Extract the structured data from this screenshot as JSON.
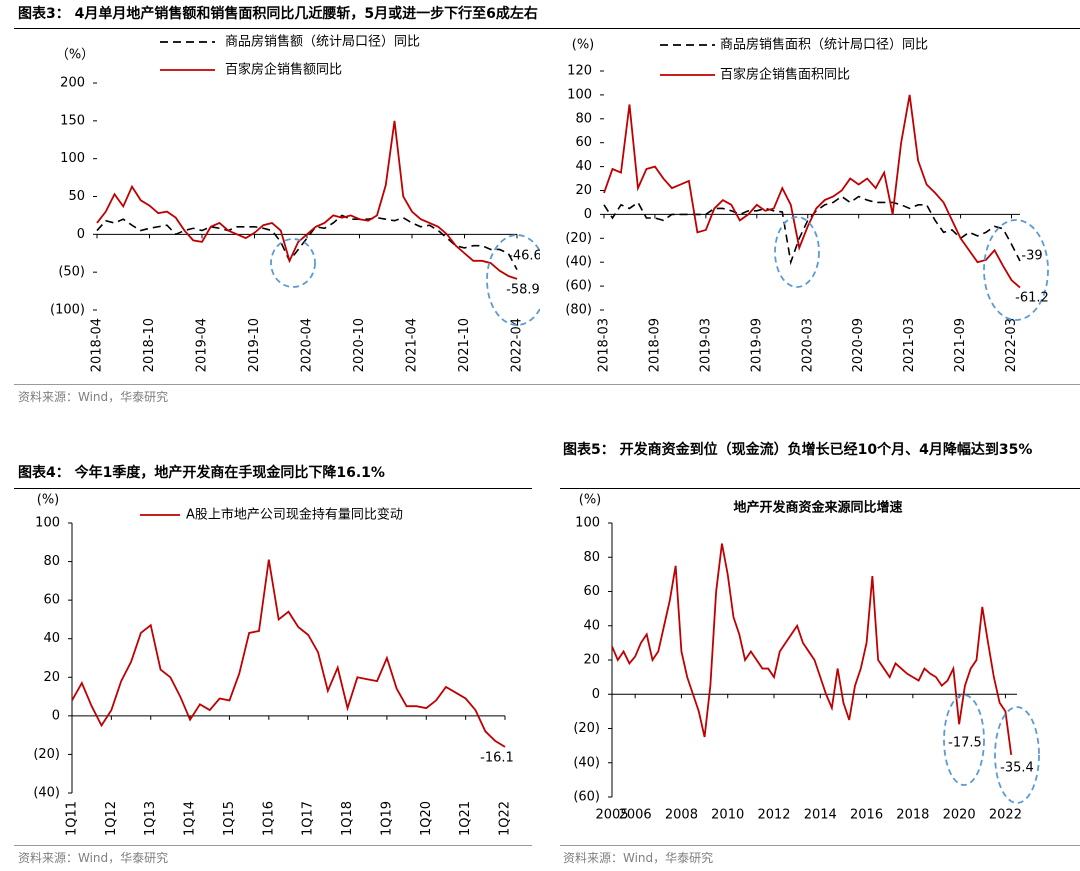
{
  "captions": [
    "图表3：  4月单月地产销售额和销售面积同比几近腰斩，5月或进一步下行至6成左右",
    "图表4：  今年1季度，地产开发商在手现金同比下降16.1%",
    "图表5：  开发商资金到位（现金流）负增长已经10个月、4月降幅达到35%"
  ],
  "sources": [
    "资料来源：Wind，华泰研究",
    "资料来源：Wind，华泰研究",
    "资料来源：Wind，华泰研究"
  ],
  "chart_data": [
    {
      "type": "line",
      "ylabel": "（%）",
      "categories": [
        "2018-04",
        null,
        null,
        null,
        null,
        null,
        "2018-10",
        null,
        null,
        null,
        null,
        null,
        "2019-04",
        null,
        null,
        null,
        null,
        null,
        "2019-10",
        null,
        null,
        null,
        null,
        null,
        "2020-04",
        null,
        null,
        null,
        null,
        null,
        "2020-10",
        null,
        null,
        null,
        null,
        null,
        "2021-04",
        null,
        null,
        null,
        null,
        null,
        "2021-10",
        null,
        null,
        null,
        null,
        null,
        "2022-04"
      ],
      "series": [
        {
          "name": "商品房销售额（统计局口径）同比",
          "color": "#000000",
          "dash": true,
          "values": [
            5,
            18,
            15,
            20,
            12,
            5,
            8,
            10,
            12,
            0,
            5,
            8,
            5,
            10,
            8,
            5,
            10,
            10,
            10,
            8,
            5,
            -10,
            -35,
            -20,
            -5,
            10,
            8,
            15,
            25,
            20,
            20,
            20,
            22,
            20,
            18,
            22,
            15,
            10,
            12,
            5,
            -5,
            -15,
            -18,
            -15,
            -15,
            -20,
            -20,
            -25,
            -46.6
          ]
        },
        {
          "name": "百家房企销售额同比",
          "color": "#c00000",
          "dash": false,
          "values": [
            15,
            30,
            53,
            37,
            63,
            45,
            38,
            28,
            30,
            22,
            5,
            -8,
            -10,
            10,
            15,
            5,
            0,
            -5,
            2,
            12,
            15,
            5,
            -35,
            -10,
            0,
            10,
            15,
            25,
            22,
            25,
            20,
            18,
            25,
            65,
            150,
            50,
            30,
            20,
            15,
            10,
            0,
            -15,
            -25,
            -35,
            -35,
            -38,
            -48,
            -55,
            -58.9
          ]
        }
      ],
      "ylim": [
        -100,
        200
      ],
      "yticks": [
        {
          "value": -100,
          "label": "(100)"
        },
        {
          "value": -50,
          "label": "(50)"
        },
        0,
        50,
        100,
        150,
        200
      ]
    },
    {
      "type": "line",
      "ylabel": "(%)",
      "categories": [
        "2018-03",
        null,
        null,
        null,
        null,
        null,
        "2018-09",
        null,
        null,
        null,
        null,
        null,
        "2019-03",
        null,
        null,
        null,
        null,
        null,
        "2019-09",
        null,
        null,
        null,
        null,
        null,
        "2020-03",
        null,
        null,
        null,
        null,
        null,
        "2020-09",
        null,
        null,
        null,
        null,
        null,
        "2021-03",
        null,
        null,
        null,
        null,
        null,
        "2021-09",
        null,
        null,
        null,
        null,
        null,
        "2022-03",
        null
      ],
      "series": [
        {
          "name": "商品房销售面积（统计局口径）同比",
          "color": "#000000",
          "dash": true,
          "values": [
            8,
            -3,
            8,
            5,
            10,
            -3,
            -3,
            -5,
            0,
            0,
            0,
            0,
            0,
            5,
            5,
            3,
            0,
            3,
            3,
            5,
            3,
            2,
            -40,
            -20,
            -5,
            3,
            8,
            10,
            15,
            10,
            15,
            12,
            10,
            10,
            10,
            8,
            5,
            8,
            8,
            -5,
            -15,
            -13,
            -20,
            -15,
            -18,
            -15,
            -10,
            -12,
            -25,
            -39
          ]
        },
        {
          "name": "百家房企销售面积同比",
          "color": "#c00000",
          "dash": false,
          "values": [
            18,
            38,
            35,
            92,
            22,
            38,
            40,
            30,
            22,
            25,
            28,
            -15,
            -13,
            5,
            12,
            8,
            -5,
            0,
            8,
            3,
            5,
            22,
            8,
            -28,
            -10,
            5,
            12,
            15,
            20,
            30,
            25,
            30,
            22,
            35,
            0,
            60,
            100,
            45,
            25,
            18,
            10,
            -5,
            -20,
            -30,
            -40,
            -38,
            -30,
            -43,
            -55,
            -61.2
          ]
        }
      ],
      "ylim": [
        -80,
        120
      ],
      "yticks": [
        {
          "value": -80,
          "label": "(80)"
        },
        {
          "value": -60,
          "label": "(60)"
        },
        {
          "value": -40,
          "label": "(40)"
        },
        {
          "value": -20,
          "label": "(20)"
        },
        0,
        20,
        40,
        60,
        80,
        100,
        120
      ]
    },
    {
      "type": "line",
      "ylabel": "(%)",
      "categories": [
        "1Q11",
        null,
        null,
        null,
        "1Q12",
        null,
        null,
        null,
        "1Q13",
        null,
        null,
        null,
        "1Q14",
        null,
        null,
        null,
        "1Q15",
        null,
        null,
        null,
        "1Q16",
        null,
        null,
        null,
        "1Q17",
        null,
        null,
        null,
        "1Q18",
        null,
        null,
        null,
        "1Q19",
        null,
        null,
        null,
        "1Q20",
        null,
        null,
        null,
        "1Q21",
        null,
        null,
        null,
        "1Q22"
      ],
      "series": [
        {
          "name": "A股上市地产公司现金持有量同比变动",
          "color": "#c00000",
          "dash": false,
          "values": [
            8,
            17,
            5,
            -5,
            3,
            18,
            28,
            43,
            47,
            24,
            20,
            10,
            -2,
            6,
            3,
            9,
            8,
            22,
            43,
            44,
            81,
            50,
            54,
            46,
            42,
            33,
            13,
            25,
            4,
            20,
            19,
            18,
            30,
            14,
            5,
            5,
            4,
            8,
            15,
            12,
            9,
            3,
            -8,
            -13,
            -16.1
          ]
        }
      ],
      "ylim": [
        -40,
        100
      ],
      "yticks": [
        {
          "value": -40,
          "label": "(40)"
        },
        {
          "value": -20,
          "label": "(20)"
        },
        0,
        20,
        40,
        60,
        80,
        100
      ]
    },
    {
      "type": "line",
      "title": "地产开发商资金来源同比增速",
      "ylabel": "(%)",
      "color": "#c00000",
      "x": [
        2005,
        2005.25,
        2005.5,
        2005.75,
        2006,
        2006.25,
        2006.5,
        2006.75,
        2007,
        2007.25,
        2007.5,
        2007.75,
        2008,
        2008.25,
        2008.5,
        2008.75,
        2009,
        2009.25,
        2009.5,
        2009.75,
        2010,
        2010.25,
        2010.5,
        2010.75,
        2011,
        2011.25,
        2011.5,
        2011.75,
        2012,
        2012.25,
        2012.5,
        2012.75,
        2013,
        2013.25,
        2013.5,
        2013.75,
        2014,
        2014.25,
        2014.5,
        2014.75,
        2015,
        2015.25,
        2015.5,
        2015.75,
        2016,
        2016.25,
        2016.5,
        2016.75,
        2017,
        2017.25,
        2017.5,
        2017.75,
        2018,
        2018.25,
        2018.5,
        2018.75,
        2019,
        2019.25,
        2019.5,
        2019.75,
        2020,
        2020.25,
        2020.5,
        2020.75,
        2021,
        2021.25,
        2021.5,
        2021.75,
        2022,
        2022.25
      ],
      "values": [
        28,
        20,
        25,
        18,
        22,
        30,
        35,
        20,
        25,
        40,
        55,
        75,
        25,
        10,
        0,
        -10,
        -25,
        5,
        60,
        88,
        70,
        45,
        35,
        20,
        25,
        20,
        15,
        15,
        10,
        25,
        30,
        35,
        40,
        30,
        25,
        20,
        10,
        0,
        -8,
        15,
        -5,
        -15,
        5,
        15,
        30,
        69,
        20,
        15,
        10,
        18,
        15,
        12,
        10,
        8,
        15,
        12,
        10,
        5,
        8,
        15,
        -17.5,
        5,
        15,
        20,
        51,
        30,
        10,
        -5,
        -10,
        -35.4
      ],
      "xlim": [
        2005,
        2022.5
      ],
      "xticks": [
        2005,
        2006,
        2008,
        2010,
        2012,
        2014,
        2016,
        2018,
        2020,
        2022
      ],
      "ylim": [
        -60,
        100
      ],
      "yticks": [
        {
          "value": -60,
          "label": "(60)"
        },
        {
          "value": -40,
          "label": "(40)"
        },
        {
          "value": -20,
          "label": "(20)"
        },
        0,
        20,
        40,
        60,
        80,
        100
      ]
    }
  ]
}
